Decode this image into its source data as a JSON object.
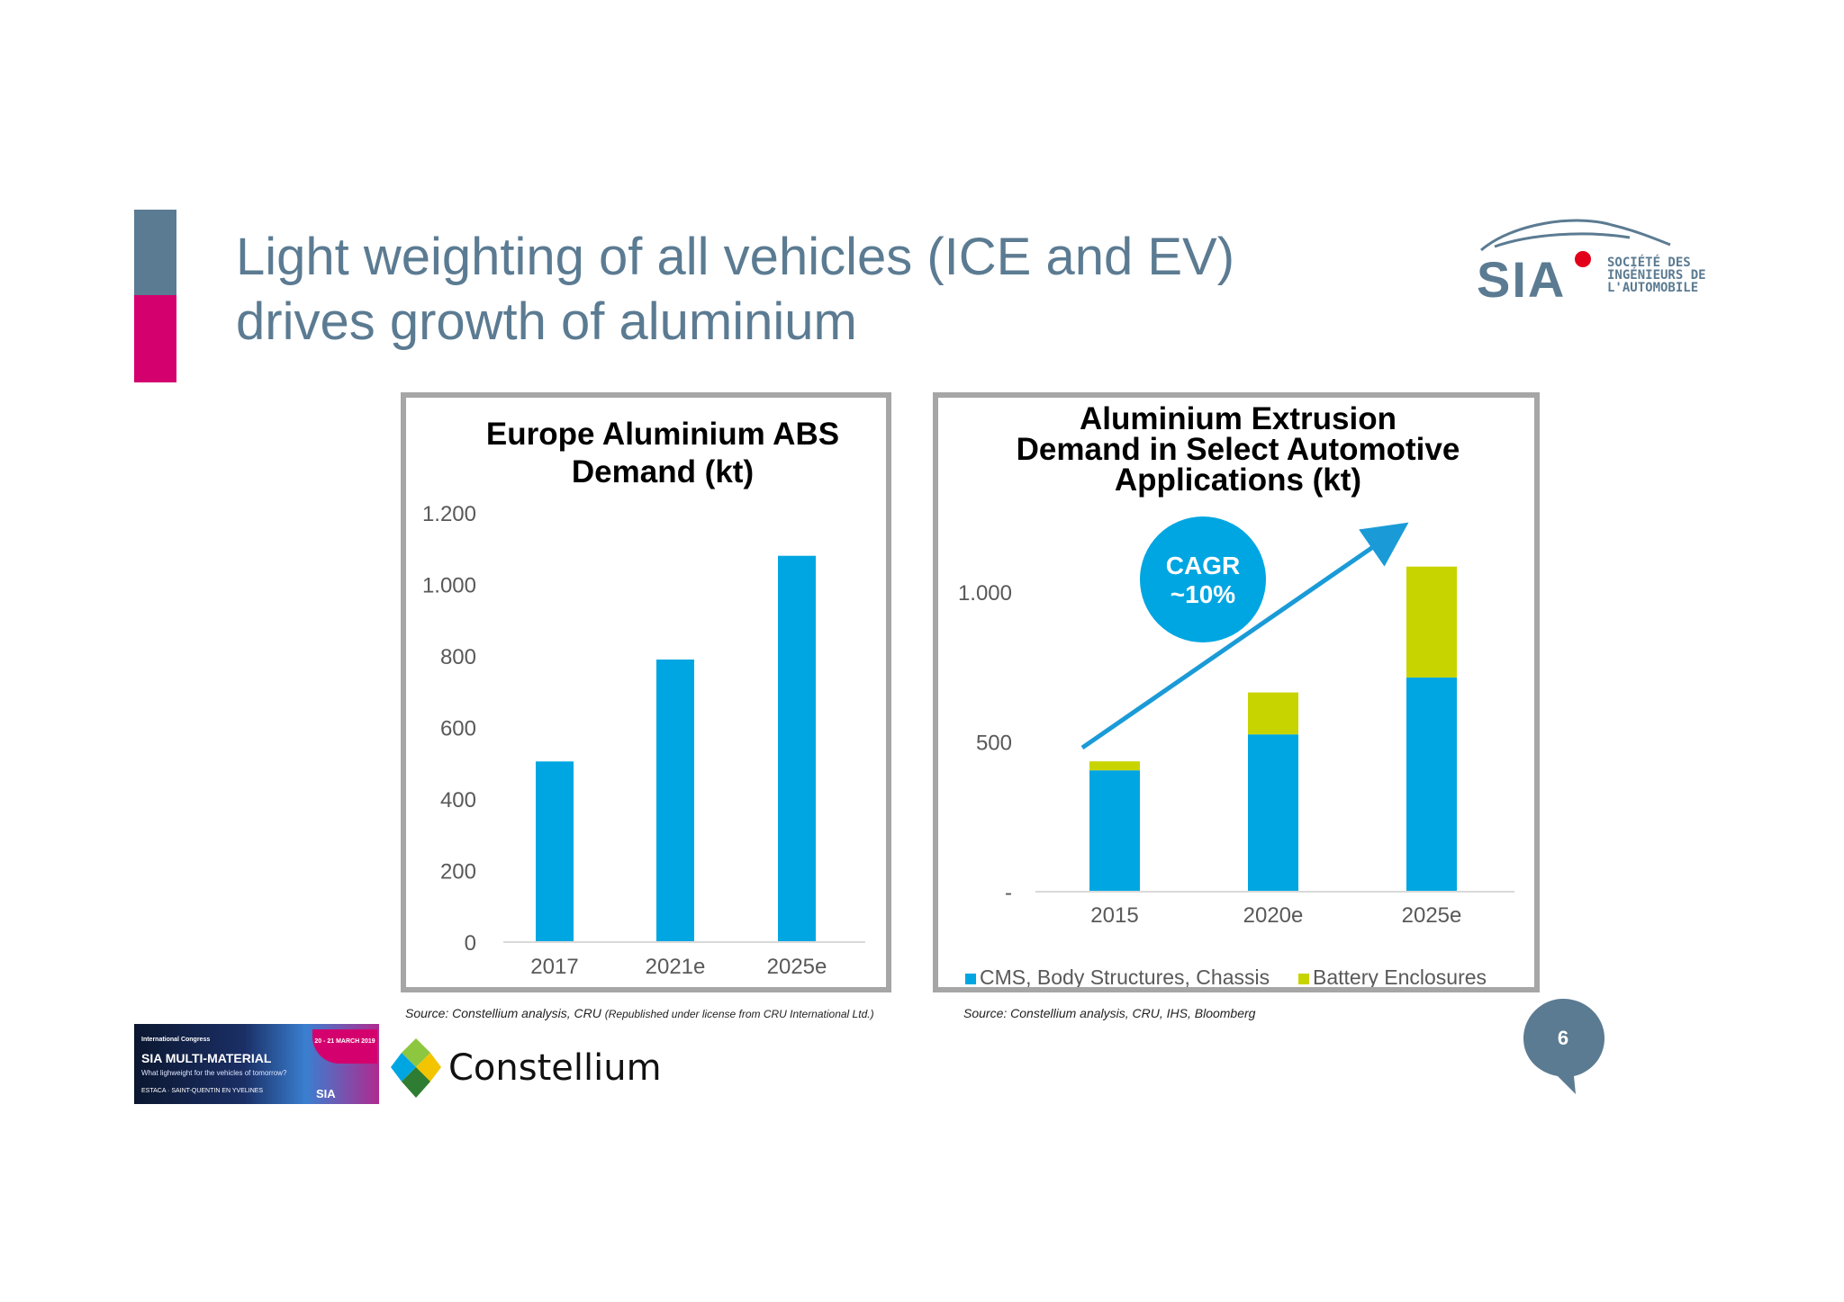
{
  "slide": {
    "title_line1": "Light weighting of all vehicles (ICE and EV)",
    "title_line2": "drives growth of aluminium",
    "page_number": "6"
  },
  "sia_logo": {
    "initials": "SIA",
    "line1": "SOCIÉTÉ DES",
    "line2": "INGÉNIEURS DE",
    "line3": "L'AUTOMOBILE"
  },
  "congress_banner": {
    "small": "International Congress",
    "main": "SIA MULTI-MATERIAL",
    "sub": "What lighweight for the vehicles of tomorrow?",
    "date": "20 - 21 MARCH 2019",
    "foot": "ESTACA · SAINT-QUENTIN EN YVELINES",
    "sia": "SIA"
  },
  "constellium": {
    "name": "Constellium"
  },
  "sources": {
    "left_main": "Source: Constellium analysis, CRU",
    "left_note": "(Republished under license from CRU International Ltd.)",
    "right": "Source: Constellium analysis, CRU, IHS, Bloomberg"
  },
  "colors": {
    "accent_slate": "#5b7b92",
    "accent_magenta": "#d4006e",
    "bar_blue": "#00a6e2",
    "bar_lime": "#c8d400",
    "frame": "#a6a6a6"
  },
  "chart_data": [
    {
      "type": "bar",
      "title_line1": "Europe Aluminium ABS",
      "title_line2": "Demand (kt)",
      "categories": [
        "2017",
        "2021e",
        "2025e"
      ],
      "values": [
        505,
        790,
        1080
      ],
      "ylim": [
        0,
        1200
      ],
      "yticks": [
        0,
        200,
        400,
        600,
        800,
        1000,
        1200
      ],
      "ytick_labels": [
        "0",
        "200",
        "400",
        "600",
        "800",
        "1.000",
        "1.200"
      ],
      "grid": false,
      "legend": "none"
    },
    {
      "type": "bar",
      "stacked": true,
      "title_line1": "Aluminium Extrusion",
      "title_line2": "Demand in Select Automotive",
      "title_line3": "Applications (kt)",
      "categories": [
        "2015",
        "2020e",
        "2025e"
      ],
      "series": [
        {
          "name": "CMS, Body Structures, Chassis",
          "color": "#00a6e2",
          "values": [
            405,
            525,
            715
          ]
        },
        {
          "name": "Battery Enclosures",
          "color": "#c8d400",
          "values": [
            30,
            140,
            370
          ]
        }
      ],
      "ylim": [
        0,
        1250
      ],
      "yticks": [
        0,
        500,
        1000
      ],
      "ytick_labels": [
        "-",
        "500",
        "1.000"
      ],
      "annotation": {
        "line1": "CAGR",
        "line2": "~10%"
      },
      "grid": false,
      "legend": "bottom"
    }
  ]
}
